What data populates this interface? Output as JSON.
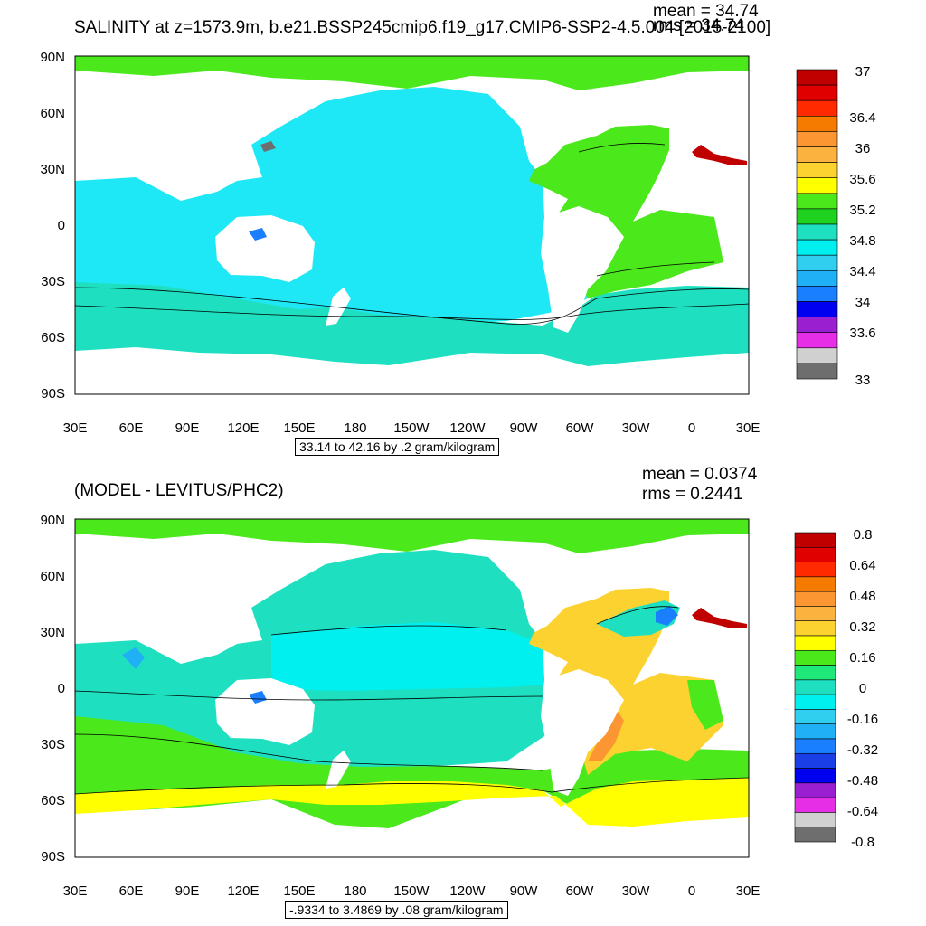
{
  "panels": [
    {
      "title": "SALINITY at z=1573.9m, b.e21.BSSP245cmip6.f19_g17.CMIP6-SSP2-4.5.004 [2015-2100]",
      "mean": "mean = 34.74",
      "rms": "rms = 34.74",
      "range_label": "33.14 to 42.16 by .2 gram/kilogram",
      "lat_labels": [
        "90N",
        "60N",
        "30N",
        "0",
        "30S",
        "60S",
        "90S"
      ],
      "lon_labels": [
        "30E",
        "60E",
        "90E",
        "120E",
        "150E",
        "180",
        "150W",
        "120W",
        "90W",
        "60W",
        "30W",
        "0",
        "30E"
      ],
      "colorbar_colors": [
        "#6e6e6e",
        "#d0d0d0",
        "#e62ee6",
        "#9a1fd0",
        "#0000f0",
        "#1a7fff",
        "#1fb0f5",
        "#30cff0",
        "#00f0f0",
        "#1ee0c0",
        "#1fd21f",
        "#4be81c",
        "#ffff00",
        "#fcd230",
        "#fcb23f",
        "#fc9632",
        "#f57a00",
        "#ff2a00",
        "#e00000",
        "#c00000"
      ],
      "colorbar_labels": [
        "37",
        "36.4",
        "36",
        "35.6",
        "35.2",
        "34.8",
        "34.4",
        "34",
        "33.6",
        "33"
      ]
    },
    {
      "title": "(MODEL - LEVITUS/PHC2)",
      "mean": "mean = 0.0374",
      "rms": "rms = 0.2441",
      "range_label": "-.9334 to 3.4869 by .08 gram/kilogram",
      "lat_labels": [
        "90N",
        "60N",
        "30N",
        "0",
        "30S",
        "60S",
        "90S"
      ],
      "lon_labels": [
        "30E",
        "60E",
        "90E",
        "120E",
        "150E",
        "180",
        "150W",
        "120W",
        "90W",
        "60W",
        "30W",
        "0",
        "30E"
      ],
      "colorbar_colors": [
        "#6e6e6e",
        "#d0d0d0",
        "#e62ee6",
        "#9a1fd0",
        "#0000f0",
        "#1a3fe6",
        "#1a7fff",
        "#1fb0f5",
        "#30cff0",
        "#00f0f0",
        "#1ee0c0",
        "#1fe87a",
        "#4be81c",
        "#ffff00",
        "#fcd230",
        "#fcb23f",
        "#fc9632",
        "#f57a00",
        "#ff2a00",
        "#e00000",
        "#c00000"
      ],
      "colorbar_labels": [
        "0.8",
        "0.64",
        "0.48",
        "0.32",
        "0.16",
        "0",
        "-0.16",
        "-0.32",
        "-0.48",
        "-0.64",
        "-0.8"
      ]
    }
  ],
  "colors": {
    "land": "#ffffff",
    "arctic": "#4be81c",
    "top_pacific": "#1ee8f5",
    "top_southern": "#1ee0c0",
    "top_atlantic": "#4be81c",
    "bot_pacific": "#1ee0c0",
    "bot_southern": "#4be81c",
    "bot_atlantic": "#fcd230",
    "bot_yellow": "#ffff00"
  }
}
